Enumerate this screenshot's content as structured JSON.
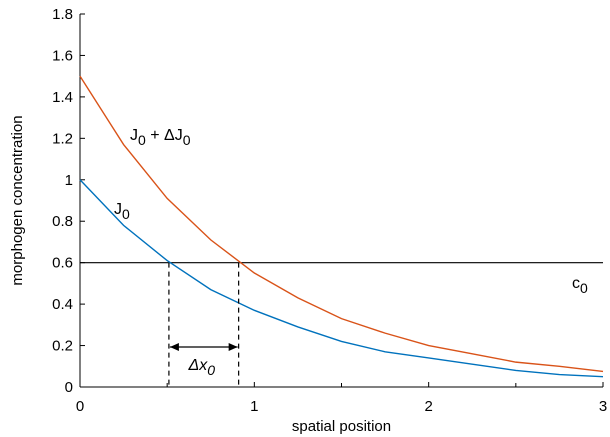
{
  "chart_data": {
    "type": "line",
    "title": "",
    "xlabel": "spatial position",
    "ylabel": "morphogen concentration",
    "xlim": [
      0,
      3
    ],
    "ylim": [
      0,
      1.8
    ],
    "grid": false,
    "x_ticks": [
      0,
      1,
      2,
      3
    ],
    "x_tick_labels": [
      "0",
      "1",
      "2",
      "3"
    ],
    "y_ticks": [
      0,
      0.2,
      0.4,
      0.6,
      0.8,
      1,
      1.2,
      1.4,
      1.6,
      1.8
    ],
    "y_tick_labels": [
      "0",
      "0.2",
      "0.4",
      "0.6",
      "0.8",
      "1",
      "1.2",
      "1.4",
      "1.6",
      "1.8"
    ],
    "x_minor_ticks": [
      0.5,
      1.5,
      2.5
    ],
    "series": [
      {
        "color": "#0072BD",
        "label_parts": [
          "J",
          "0"
        ],
        "x": [
          0,
          0.25,
          0.5,
          0.75,
          1.0,
          1.25,
          1.5,
          1.75,
          2.0,
          2.25,
          2.5,
          2.75,
          3.0
        ],
        "y": [
          1.0,
          0.78,
          0.61,
          0.47,
          0.37,
          0.29,
          0.22,
          0.17,
          0.14,
          0.11,
          0.08,
          0.06,
          0.05
        ]
      },
      {
        "color": "#D95319",
        "label_parts": [
          "J",
          "0",
          " + ΔJ",
          "0"
        ],
        "x": [
          0,
          0.25,
          0.5,
          0.75,
          1.0,
          1.25,
          1.5,
          1.75,
          2.0,
          2.25,
          2.5,
          2.75,
          3.0
        ],
        "y": [
          1.5,
          1.17,
          0.91,
          0.71,
          0.55,
          0.43,
          0.33,
          0.26,
          0.2,
          0.16,
          0.12,
          0.1,
          0.075
        ]
      }
    ],
    "threshold": {
      "y": 0.6,
      "color": "#000000",
      "label_parts": [
        "c",
        "0"
      ]
    },
    "markers": {
      "x1": 0.51,
      "x2": 0.91,
      "label_parts": [
        "Δx",
        "0"
      ]
    }
  }
}
